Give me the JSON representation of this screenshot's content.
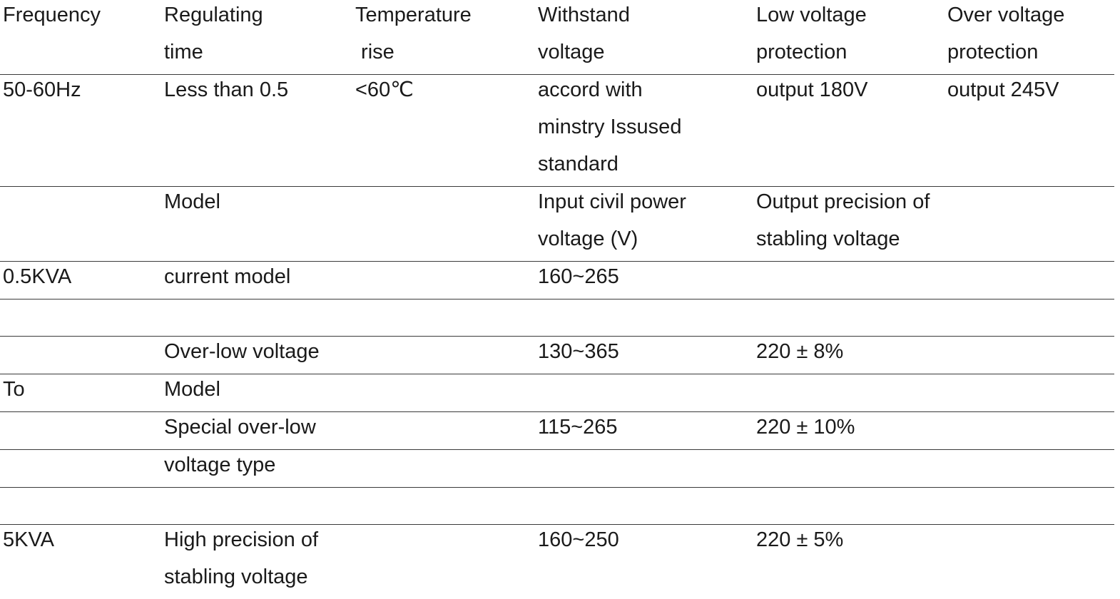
{
  "table": {
    "header": {
      "frequency": [
        "Frequency",
        ""
      ],
      "regulating_time": [
        "Regulating",
        "time"
      ],
      "temperature_rise": [
        "Temperature",
        " rise"
      ],
      "withstand_voltage": [
        "Withstand",
        "voltage"
      ],
      "low_voltage_protection": [
        "Low voltage",
        "protection"
      ],
      "over_voltage_protection": [
        "Over voltage",
        "protection"
      ]
    },
    "spec_row": {
      "frequency": "50-60Hz",
      "regulating_time": "Less than 0.5",
      "temperature_rise": "<60℃",
      "withstand_voltage": [
        "accord with",
        "minstry Issused",
        "standard"
      ],
      "low_voltage_protection": "output 180V",
      "over_voltage_protection": "output 245V"
    },
    "model_header": {
      "model": "Model",
      "input_voltage": [
        "Input civil power",
        "voltage (V)"
      ],
      "output_precision": [
        "Output precision of",
        "stabling voltage"
      ]
    },
    "rows": [
      {
        "capacity": "0.5KVA",
        "model": "current model",
        "input": "160~265",
        "precision": ""
      },
      {
        "capacity": "",
        "model": "",
        "input": "",
        "precision": ""
      },
      {
        "capacity": "",
        "model": "Over-low voltage",
        "input": "130~365",
        "precision": "220 ± 8%"
      },
      {
        "capacity": "To",
        "model": "Model",
        "input": "",
        "precision": ""
      },
      {
        "capacity": "",
        "model": "Special over-low",
        "input": "115~265",
        "precision": "220 ± 10%"
      },
      {
        "capacity": "",
        "model": "voltage type",
        "input": "",
        "precision": ""
      },
      {
        "capacity": "",
        "model": "",
        "input": "",
        "precision": ""
      },
      {
        "capacity": "5KVA",
        "model": [
          "High precision of",
          "stabling voltage"
        ],
        "input": "160~250",
        "precision": "220 ± 5%"
      }
    ]
  },
  "colors": {
    "text": "#1a1a1a",
    "rule": "#3a3a3a",
    "background": "#ffffff"
  }
}
